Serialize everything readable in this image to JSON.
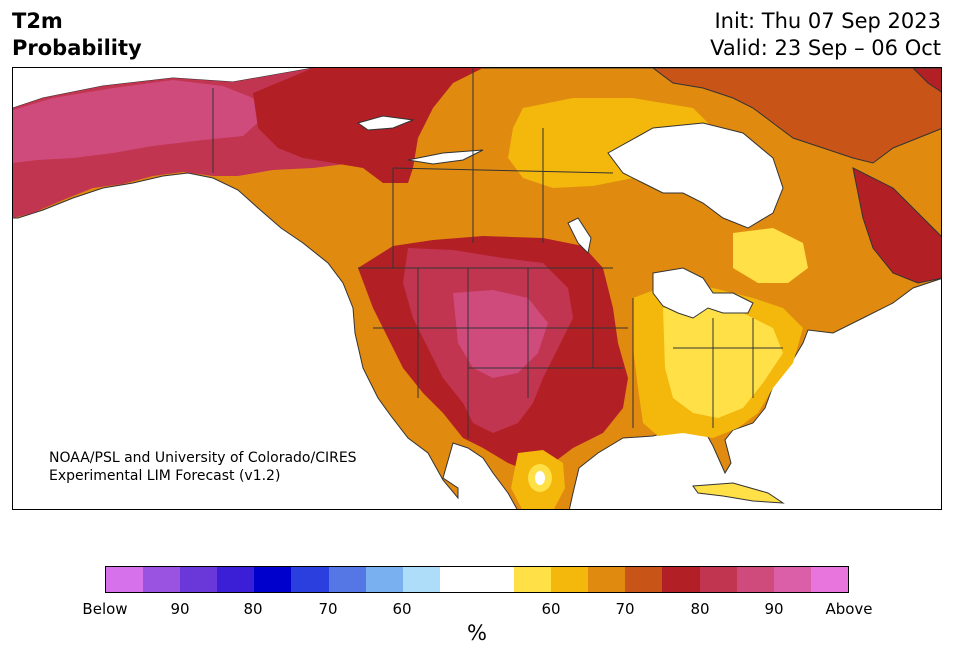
{
  "header": {
    "title_line1": "T2m",
    "title_line2": "Probability",
    "init": "Init: Thu 07 Sep 2023",
    "valid": "Valid: 23 Sep – 06 Oct"
  },
  "credit": {
    "line1": "NOAA/PSL and University of Colorado/CIRES",
    "line2": "Experimental LIM Forecast (v1.2)"
  },
  "colorbar": {
    "unit": "%",
    "colors": [
      "#d671eb",
      "#9a52e0",
      "#6a37d9",
      "#3a1fd6",
      "#0000cc",
      "#2a3fdd",
      "#5577e6",
      "#79b0f0",
      "#aeddfa",
      "#ffffff",
      "#ffffff",
      "#ffe047",
      "#f4b70c",
      "#e08a10",
      "#c85418",
      "#b22025",
      "#c23550",
      "#cf4b7c",
      "#db5ea8",
      "#e874de"
    ],
    "tick_labels": [
      "Below",
      "90",
      "80",
      "70",
      "60",
      "60",
      "70",
      "80",
      "90",
      "Above"
    ]
  },
  "map": {
    "colors": {
      "land_white": "#ffffff",
      "p60": "#ffe047",
      "p65": "#f4b70c",
      "p70": "#e08a10",
      "p75": "#c85418",
      "p80": "#b22025",
      "p85": "#c23550",
      "p90": "#cf4b7c",
      "p95": "#db5ea8",
      "above": "#e874de",
      "border": "#333333"
    }
  }
}
